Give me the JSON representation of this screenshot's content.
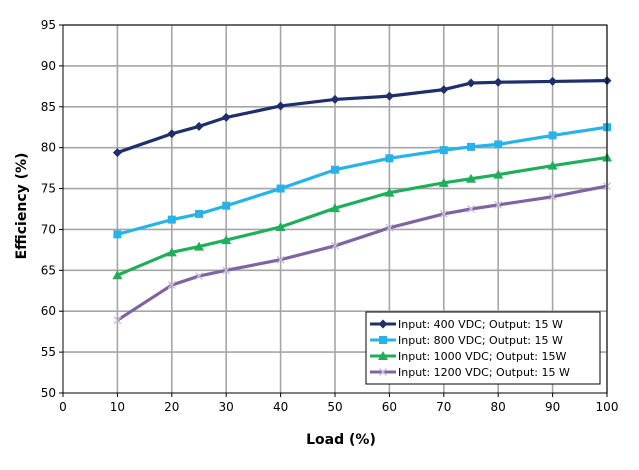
{
  "chart_data": {
    "type": "line",
    "title": "",
    "xlabel": "Load (%)",
    "ylabel": "Efficiency (%)",
    "xlim": [
      0,
      100
    ],
    "ylim": [
      50,
      95
    ],
    "x_ticks": [
      0,
      10,
      20,
      30,
      40,
      50,
      60,
      70,
      80,
      90,
      100
    ],
    "y_ticks": [
      50,
      55,
      60,
      65,
      70,
      75,
      80,
      85,
      90,
      95
    ],
    "grid": true,
    "legend_position": "bottom-right",
    "series": [
      {
        "name": "Input: 400 VDC; Output: 15 W",
        "color": "#1f2f6b",
        "marker": "diamond",
        "x": [
          10,
          20,
          25,
          30,
          40,
          50,
          60,
          70,
          75,
          80,
          90,
          100
        ],
        "values": [
          79.4,
          81.7,
          82.6,
          83.7,
          85.1,
          85.9,
          86.3,
          87.1,
          87.9,
          88.0,
          88.1,
          88.2
        ]
      },
      {
        "name": "Input: 800 VDC; Output: 15 W",
        "color": "#27b3ea",
        "marker": "square",
        "x": [
          10,
          20,
          25,
          30,
          40,
          50,
          60,
          70,
          75,
          80,
          90,
          100
        ],
        "values": [
          69.4,
          71.2,
          71.9,
          72.9,
          75.0,
          77.3,
          78.7,
          79.7,
          80.1,
          80.4,
          81.5,
          82.5
        ]
      },
      {
        "name": "Input: 1000 VDC; Output: 15W",
        "color": "#1fae5a",
        "marker": "triangle",
        "x": [
          10,
          20,
          25,
          30,
          40,
          50,
          60,
          70,
          75,
          80,
          90,
          100
        ],
        "values": [
          64.4,
          67.2,
          67.9,
          68.7,
          70.3,
          72.6,
          74.5,
          75.7,
          76.2,
          76.7,
          77.8,
          78.8
        ]
      },
      {
        "name": "Input: 1200 VDC; Output: 15 W",
        "color": "#8064a2",
        "marker": "x",
        "x": [
          10,
          20,
          25,
          30,
          40,
          50,
          60,
          70,
          75,
          80,
          90,
          100
        ],
        "values": [
          58.9,
          63.2,
          64.3,
          65.0,
          66.3,
          68.0,
          70.2,
          71.9,
          72.5,
          73.0,
          74.0,
          75.3
        ]
      }
    ]
  }
}
